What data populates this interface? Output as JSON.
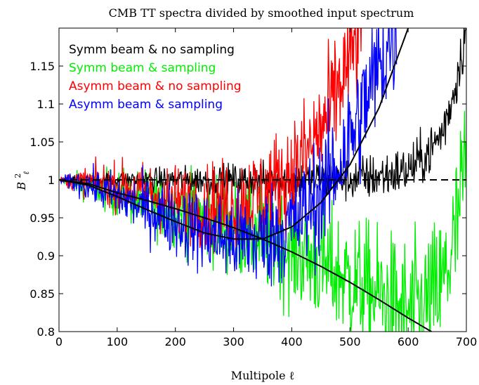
{
  "chart_data": {
    "type": "line",
    "title": "CMB TT spectra divided by smoothed input spectrum",
    "xlabel": "Multipole ℓ",
    "ylabel": "B",
    "ylabel_sup": "2",
    "ylabel_sub": "ℓ",
    "xlim": [
      0,
      700
    ],
    "ylim": [
      0.8,
      1.2
    ],
    "x_ticks": [
      0,
      100,
      200,
      300,
      400,
      500,
      600,
      700
    ],
    "y_ticks": [
      0.8,
      0.85,
      0.9,
      0.95,
      1,
      1.05,
      1.1,
      1.15
    ],
    "y_tick_labels": [
      "0.8",
      "0.85",
      "0.9",
      "0.95",
      "1",
      "1.05",
      "1.1",
      "1.15"
    ],
    "grid": false,
    "legend_position": "top-left",
    "series": [
      {
        "name": "Symm beam & no sampling",
        "color": "#000000",
        "style": "noisy",
        "x": [
          0,
          100,
          200,
          300,
          400,
          450,
          500,
          530,
          560,
          600,
          620,
          640,
          660,
          680,
          690,
          700
        ],
        "values": [
          1.0,
          1.0,
          1.0,
          1.0,
          1.0,
          1.0,
          1.001,
          1.003,
          1.006,
          1.013,
          1.025,
          1.04,
          1.065,
          1.12,
          1.16,
          1.2
        ]
      },
      {
        "name": "Symm beam & sampling",
        "color": "#00ee00",
        "style": "noisy",
        "x": [
          0,
          50,
          100,
          150,
          200,
          250,
          300,
          350,
          400,
          450,
          500,
          550,
          580,
          600,
          620,
          640,
          660,
          680,
          690,
          700
        ],
        "values": [
          1.0,
          0.993,
          0.982,
          0.972,
          0.962,
          0.95,
          0.937,
          0.923,
          0.907,
          0.888,
          0.868,
          0.846,
          0.832,
          0.825,
          0.828,
          0.84,
          0.862,
          0.92,
          0.97,
          1.04
        ]
      },
      {
        "name": "Asymm beam & no sampling",
        "color": "#ff0000",
        "style": "noisy",
        "x": [
          0,
          50,
          100,
          150,
          200,
          250,
          300,
          350,
          400,
          430,
          460,
          490,
          510,
          520
        ],
        "values": [
          1.0,
          0.998,
          0.992,
          0.982,
          0.972,
          0.965,
          0.967,
          0.98,
          1.01,
          1.04,
          1.08,
          1.14,
          1.18,
          1.2
        ]
      },
      {
        "name": "Asymm beam & sampling",
        "color": "#0000ff",
        "style": "noisy",
        "x": [
          0,
          50,
          100,
          150,
          200,
          250,
          300,
          350,
          400,
          450,
          480,
          510,
          540,
          560,
          580
        ],
        "values": [
          1.0,
          0.993,
          0.978,
          0.962,
          0.946,
          0.93,
          0.92,
          0.922,
          0.94,
          0.98,
          1.02,
          1.07,
          1.13,
          1.17,
          1.2
        ]
      },
      {
        "name": "",
        "color": "#000000",
        "style": "smooth",
        "x": [
          0,
          50,
          100,
          150,
          200,
          250,
          300,
          350,
          400,
          450,
          500,
          550,
          600,
          640
        ],
        "values": [
          1.0,
          0.995,
          0.983,
          0.973,
          0.962,
          0.95,
          0.937,
          0.922,
          0.905,
          0.886,
          0.865,
          0.842,
          0.818,
          0.8
        ]
      },
      {
        "name": "",
        "color": "#000000",
        "style": "smooth",
        "x": [
          0,
          50,
          100,
          150,
          200,
          250,
          300,
          350,
          400,
          450,
          500,
          550,
          600
        ],
        "values": [
          1.0,
          0.993,
          0.978,
          0.961,
          0.945,
          0.93,
          0.922,
          0.922,
          0.938,
          0.97,
          1.02,
          1.095,
          1.2
        ]
      },
      {
        "name": "",
        "color": "#000000",
        "style": "dashed",
        "x": [
          0,
          700
        ],
        "values": [
          1.0,
          1.0
        ]
      }
    ]
  }
}
